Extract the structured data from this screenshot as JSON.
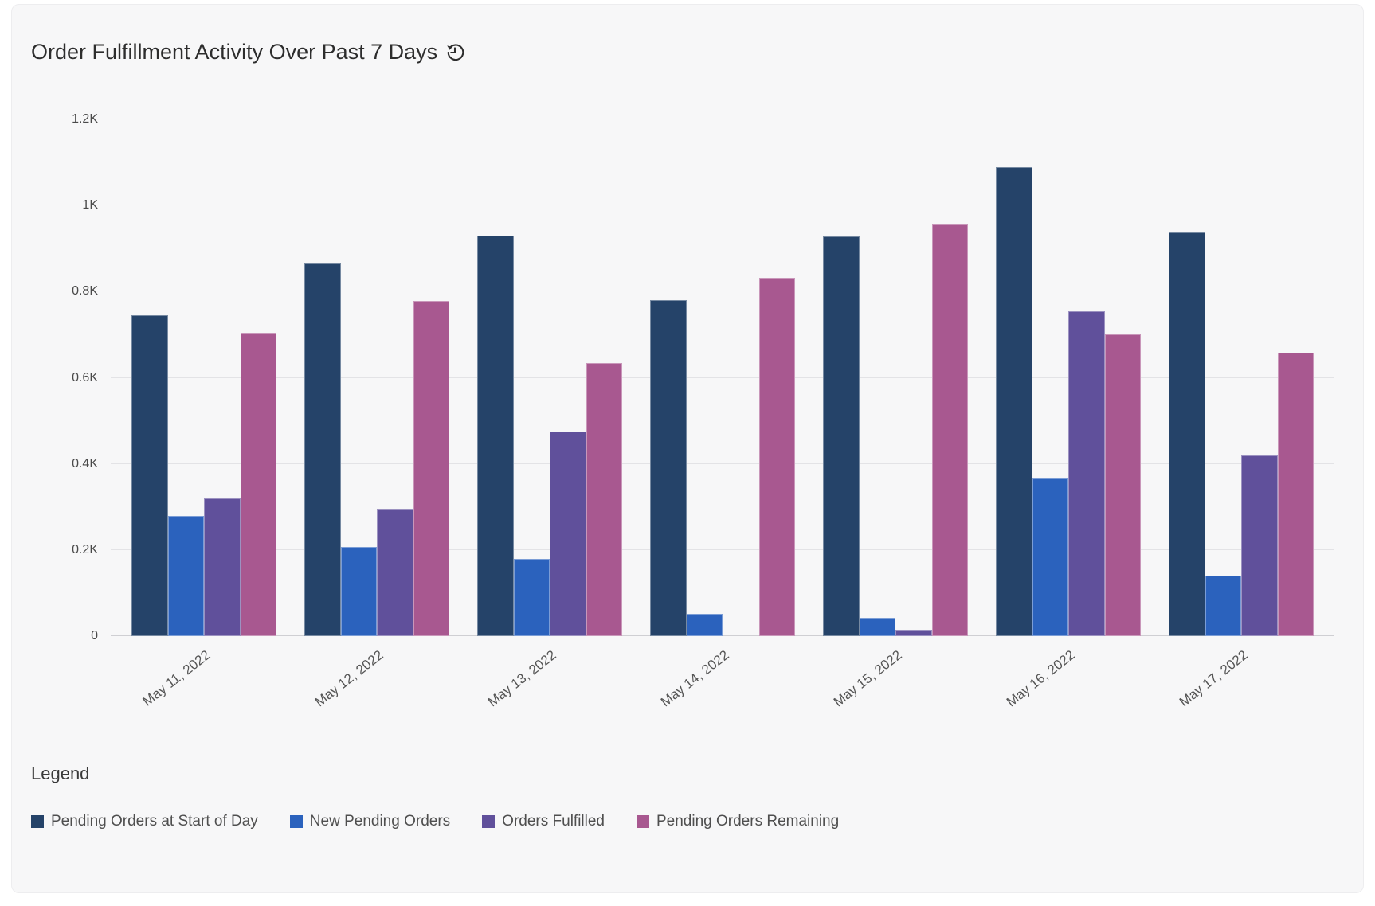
{
  "card": {
    "title_icon": "history-clock"
  },
  "legend": {
    "heading": "Legend"
  },
  "chart_data": {
    "type": "bar",
    "title": "Order Fulfillment Activity Over Past 7 Days",
    "categories": [
      "May 11, 2022",
      "May 12, 2022",
      "May 13, 2022",
      "May 14, 2022",
      "May 15, 2022",
      "May 16, 2022",
      "May 17, 2022"
    ],
    "series": [
      {
        "name": "Pending Orders at Start of Day",
        "color": "#254369",
        "values": [
          745,
          868,
          930,
          780,
          928,
          1090,
          938
        ]
      },
      {
        "name": "New Pending Orders",
        "color": "#2B62BD",
        "values": [
          280,
          207,
          180,
          52,
          43,
          366,
          140
        ]
      },
      {
        "name": "Orders Fulfilled",
        "color": "#60509B",
        "values": [
          320,
          296,
          475,
          0,
          14,
          755,
          420
        ]
      },
      {
        "name": "Pending Orders Remaining",
        "color": "#A85890",
        "values": [
          705,
          779,
          635,
          832,
          957,
          701,
          658
        ]
      }
    ],
    "xlabel": "",
    "ylabel": "",
    "ylim": [
      0,
      1200
    ],
    "y_ticks": [
      "0",
      "0.2K",
      "0.4K",
      "0.6K",
      "0.8K",
      "1K",
      "1.2K"
    ],
    "grid": "horizontal",
    "legend_position": "bottom",
    "bar_border_color": "rgba(255,255,255,0.38)"
  },
  "colors": {
    "card_background": "#f7f7f8",
    "grid_line": "#e3e3e6",
    "axis_text": "#4a4a4a",
    "title_text": "#2d2d2d"
  }
}
